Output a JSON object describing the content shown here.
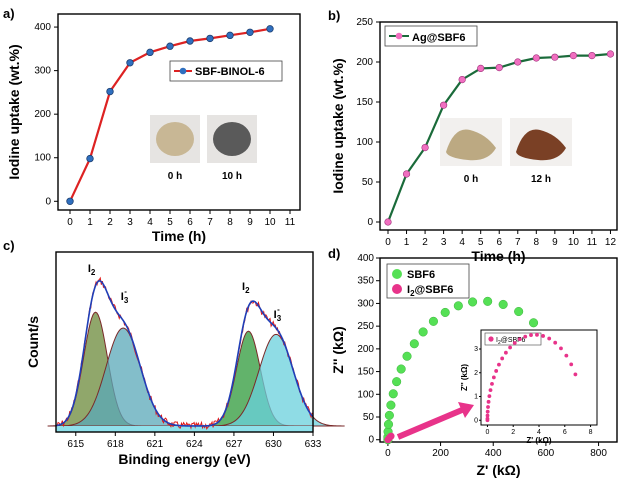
{
  "chart_data": [
    {
      "panel": "a)",
      "type": "line",
      "xlabel": "Time (h)",
      "ylabel": "Iodine uptake (wt.%)",
      "xlim": [
        0,
        11
      ],
      "ylim": [
        -20,
        430
      ],
      "xticks": [
        "0",
        "1",
        "2",
        "3",
        "4",
        "5",
        "6",
        "7",
        "8",
        "9",
        "10",
        "11"
      ],
      "yticks": [
        "0",
        "100",
        "200",
        "300",
        "400"
      ],
      "x": [
        0,
        1,
        2,
        3,
        4,
        5,
        6,
        7,
        8,
        9,
        10
      ],
      "series": [
        {
          "name": "SBF-BINOL-6",
          "color": "#dd2222",
          "marker_color": "#2f6fbf",
          "values": [
            0,
            98,
            252,
            318,
            342,
            356,
            368,
            374,
            381,
            388,
            396
          ]
        }
      ],
      "legend": "center-right",
      "photos": [
        {
          "caption": "0 h",
          "color": "#c8b795"
        },
        {
          "caption": "10 h",
          "color": "#5a5a5a"
        }
      ]
    },
    {
      "panel": "b)",
      "type": "line",
      "xlabel": "Time (h)",
      "ylabel": "Iodine uptake (wt.%)",
      "xlim": [
        0,
        13
      ],
      "ylim": [
        -10,
        250
      ],
      "xticks": [
        "0",
        "1",
        "2",
        "3",
        "4",
        "5",
        "6",
        "7",
        "8",
        "9",
        "10",
        "11",
        "12"
      ],
      "yticks": [
        "0",
        "50",
        "100",
        "150",
        "200",
        "250"
      ],
      "x": [
        0,
        1,
        2,
        3,
        4,
        5,
        6,
        7,
        8,
        9,
        10,
        11,
        12
      ],
      "series": [
        {
          "name": "Ag@SBF6",
          "color": "#1a6b3a",
          "marker_color": "#f06fc0",
          "values": [
            0,
            60,
            93,
            146,
            178,
            192,
            193,
            200,
            205,
            206,
            208,
            208,
            210
          ]
        }
      ],
      "legend": "top-left",
      "photos": [
        {
          "caption": "0 h",
          "color": "#bca982"
        },
        {
          "caption": "12 h",
          "color": "#7a4025"
        }
      ]
    },
    {
      "panel": "c)",
      "type": "line",
      "xlabel": "Binding energy (eV)",
      "ylabel": "Count/s",
      "xlim": [
        613.5,
        633
      ],
      "xticks": [
        "615",
        "618",
        "621",
        "624",
        "627",
        "630",
        "633"
      ],
      "peak_labels": [
        "I2",
        "I3-",
        "I2",
        "I3-"
      ],
      "components": [
        {
          "center": 616.5,
          "height": 0.72,
          "width": 0.9,
          "color": "#6b8a3a"
        },
        {
          "center": 618.6,
          "height": 0.62,
          "width": 1.3,
          "color": "#5aa8b8"
        },
        {
          "center": 628.1,
          "height": 0.6,
          "width": 0.9,
          "color": "#2e9a3a"
        },
        {
          "center": 630.2,
          "height": 0.58,
          "width": 1.3,
          "color": "#6ad0dc"
        }
      ]
    },
    {
      "panel": "d)",
      "type": "scatter",
      "xlabel": "Z' (kΩ)",
      "ylabel": "Z'' (kΩ)",
      "xlim": [
        -30,
        870
      ],
      "ylim": [
        -5,
        400
      ],
      "xticks": [
        "0",
        "200",
        "400",
        "600",
        "800"
      ],
      "yticks": [
        "0",
        "50",
        "100",
        "150",
        "200",
        "250",
        "300",
        "350",
        "400"
      ],
      "series": [
        {
          "name": "SBF6",
          "color": "#55e055",
          "arc_diameter": 720,
          "arc_height": 305
        },
        {
          "name": "I2@SBF6",
          "color": "#e8338a",
          "values_x": [
            0,
            4,
            8,
            12
          ],
          "values_y": [
            0,
            3,
            6,
            8
          ]
        }
      ],
      "legend": "top-left",
      "inset": {
        "series_name": "I2@SBF6",
        "xlabel": "Z' (kΩ)",
        "ylabel": "Z'' (kΩ)",
        "xticks": [
          "0",
          "2",
          "4",
          "6",
          "8"
        ],
        "yticks": [
          "0",
          "1",
          "2",
          "3"
        ],
        "xlim": [
          -0.5,
          8.5
        ],
        "ylim": [
          -0.2,
          3.8
        ],
        "arc_diameter": 7.4,
        "arc_height": 3.6,
        "color": "#e8338a"
      }
    }
  ]
}
